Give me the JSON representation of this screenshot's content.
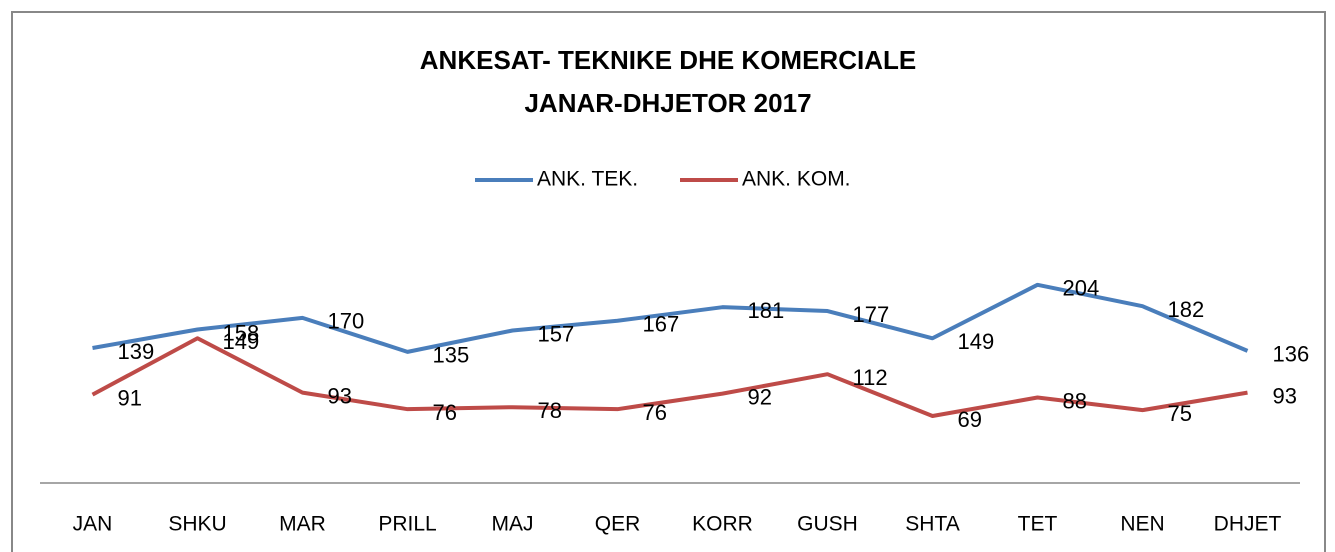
{
  "chart_data": {
    "type": "line",
    "title": [
      "ANKESAT- TEKNIKE DHE KOMERCIALE",
      "JANAR-DHJETOR 2017"
    ],
    "categories": [
      "JAN",
      "SHKU",
      "MAR",
      "PRILL",
      "MAJ",
      "QER",
      "KORR",
      "GUSH",
      "SHTA",
      "TET",
      "NEN",
      "DHJET"
    ],
    "series": [
      {
        "name": "ANK. TEK.",
        "color": "#4a7ebb",
        "values": [
          139,
          158,
          170,
          135,
          157,
          167,
          181,
          177,
          149,
          204,
          182,
          136
        ]
      },
      {
        "name": "ANK. KOM.",
        "color": "#be4b48",
        "values": [
          91,
          149,
          93,
          76,
          78,
          76,
          92,
          112,
          69,
          88,
          75,
          93
        ]
      }
    ],
    "ylim": [
      0,
      280
    ],
    "legend": "top"
  }
}
